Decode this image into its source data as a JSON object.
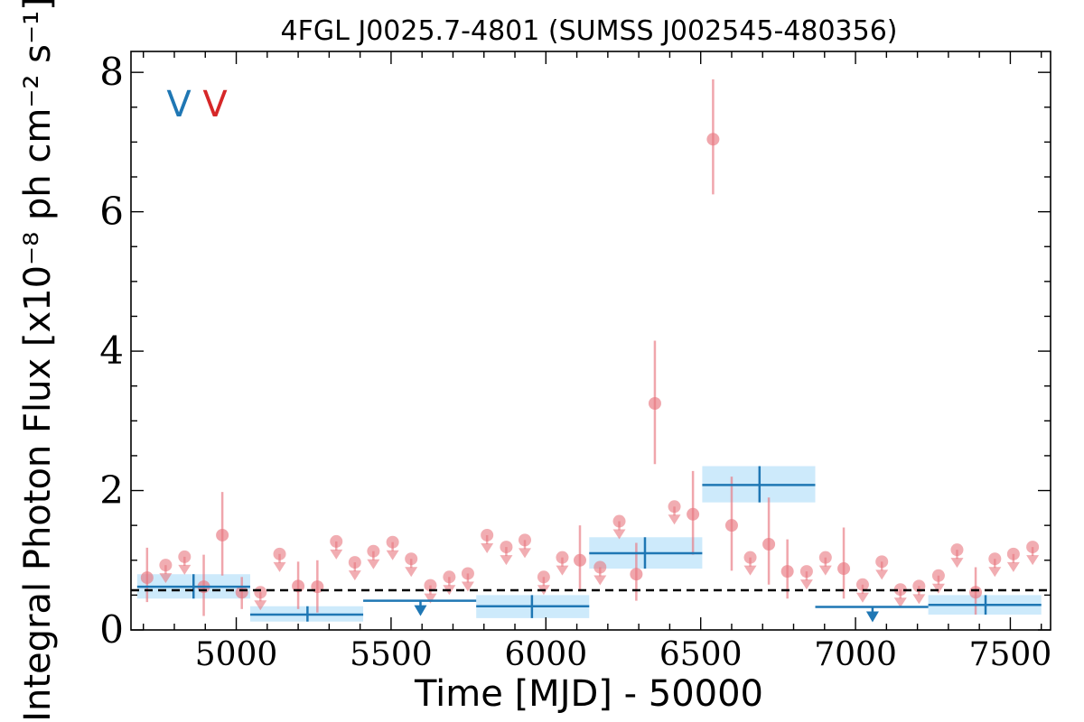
{
  "chart_data": {
    "type": "scatter",
    "title": "4FGL J0025.7-4801 (SUMSS J002545-480356)",
    "xlabel": "Time [MJD] - 50000",
    "ylabel": "Integral Photon Flux [x10⁻⁸ ph cm⁻² s⁻¹]",
    "xlim": [
      4660,
      7630
    ],
    "ylim": [
      0,
      8.3
    ],
    "x_ticks": [
      5000,
      5500,
      6000,
      6500,
      7000,
      7500
    ],
    "x_tick_labels": [
      "5000",
      "5500",
      "6000",
      "6500",
      "7000",
      "7500"
    ],
    "y_ticks": [
      0,
      2,
      4,
      6,
      8
    ],
    "y_tick_labels": [
      "0",
      "2",
      "4",
      "6",
      "8"
    ],
    "legend_markers": [
      {
        "glyph": "V",
        "color": "#1f77b4"
      },
      {
        "glyph": "V",
        "color": "#d62728"
      }
    ],
    "mean_line": {
      "y": 0.57,
      "style": "dashed",
      "color": "#000000"
    },
    "colors": {
      "long_bin": "#1f77b4",
      "long_band": "#cdeafb",
      "short_bin": "#e8777f"
    },
    "series": [
      {
        "bin": "long",
        "detections": [
          {
            "x_start": 4680,
            "x_end": 5045,
            "x": 4862,
            "y": 0.62,
            "y_lo": 0.45,
            "y_hi": 0.8
          },
          {
            "x_start": 5045,
            "x_end": 5410,
            "x": 5230,
            "y": 0.22,
            "y_lo": 0.12,
            "y_hi": 0.34
          },
          {
            "x_start": 5775,
            "x_end": 6140,
            "x": 5955,
            "y": 0.34,
            "y_lo": 0.17,
            "y_hi": 0.5
          },
          {
            "x_start": 6140,
            "x_end": 6505,
            "x": 6320,
            "y": 1.1,
            "y_lo": 0.88,
            "y_hi": 1.33
          },
          {
            "x_start": 6505,
            "x_end": 6870,
            "x": 6690,
            "y": 2.08,
            "y_lo": 1.83,
            "y_hi": 2.35
          },
          {
            "x_start": 7235,
            "x_end": 7600,
            "x": 7420,
            "y": 0.36,
            "y_lo": 0.22,
            "y_hi": 0.5
          }
        ],
        "upper_limits": [
          {
            "x_start": 5410,
            "x_end": 5775,
            "x": 5595,
            "y": 0.42
          },
          {
            "x_start": 6870,
            "x_end": 7235,
            "x": 7055,
            "y": 0.33
          }
        ]
      },
      {
        "bin": "short",
        "detections": [
          {
            "x": 4712,
            "y": 0.75,
            "y_lo": 0.4,
            "y_hi": 1.18
          },
          {
            "x": 4895,
            "y": 0.62,
            "y_lo": 0.2,
            "y_hi": 1.08
          },
          {
            "x": 4955,
            "y": 1.36,
            "y_lo": 0.78,
            "y_hi": 1.98
          },
          {
            "x": 5018,
            "y": 0.54,
            "y_lo": 0.3,
            "y_hi": 0.76
          },
          {
            "x": 5200,
            "y": 0.63,
            "y_lo": 0.3,
            "y_hi": 0.98
          },
          {
            "x": 5262,
            "y": 0.62,
            "y_lo": 0.25,
            "y_hi": 1.0
          },
          {
            "x": 6110,
            "y": 1.0,
            "y_lo": 0.55,
            "y_hi": 1.5
          },
          {
            "x": 6292,
            "y": 0.8,
            "y_lo": 0.42,
            "y_hi": 1.25
          },
          {
            "x": 6352,
            "y": 3.25,
            "y_lo": 2.38,
            "y_hi": 4.15
          },
          {
            "x": 6475,
            "y": 1.66,
            "y_lo": 1.08,
            "y_hi": 2.28
          },
          {
            "x": 6540,
            "y": 7.04,
            "y_lo": 6.25,
            "y_hi": 7.9
          },
          {
            "x": 6600,
            "y": 1.5,
            "y_lo": 0.85,
            "y_hi": 2.2
          },
          {
            "x": 6720,
            "y": 1.23,
            "y_lo": 0.65,
            "y_hi": 1.9
          },
          {
            "x": 6780,
            "y": 0.84,
            "y_lo": 0.45,
            "y_hi": 1.3
          },
          {
            "x": 6962,
            "y": 0.88,
            "y_lo": 0.45,
            "y_hi": 1.47
          },
          {
            "x": 7388,
            "y": 0.54,
            "y_lo": 0.22,
            "y_hi": 0.9
          }
        ],
        "upper_limits": [
          {
            "x": 4772,
            "y": 0.93
          },
          {
            "x": 4833,
            "y": 1.05
          },
          {
            "x": 5078,
            "y": 0.54
          },
          {
            "x": 5140,
            "y": 1.09
          },
          {
            "x": 5323,
            "y": 1.27
          },
          {
            "x": 5383,
            "y": 0.97
          },
          {
            "x": 5443,
            "y": 1.13
          },
          {
            "x": 5505,
            "y": 1.26
          },
          {
            "x": 5565,
            "y": 1.02
          },
          {
            "x": 5627,
            "y": 0.64
          },
          {
            "x": 5688,
            "y": 0.76
          },
          {
            "x": 5748,
            "y": 0.81
          },
          {
            "x": 5810,
            "y": 1.36
          },
          {
            "x": 5872,
            "y": 1.19
          },
          {
            "x": 5932,
            "y": 1.29
          },
          {
            "x": 5993,
            "y": 0.76
          },
          {
            "x": 6053,
            "y": 1.04
          },
          {
            "x": 6175,
            "y": 0.9
          },
          {
            "x": 6237,
            "y": 1.56
          },
          {
            "x": 6415,
            "y": 1.77
          },
          {
            "x": 6660,
            "y": 1.04
          },
          {
            "x": 6842,
            "y": 0.84
          },
          {
            "x": 6903,
            "y": 1.04
          },
          {
            "x": 7023,
            "y": 0.65
          },
          {
            "x": 7085,
            "y": 0.98
          },
          {
            "x": 7145,
            "y": 0.58
          },
          {
            "x": 7205,
            "y": 0.63
          },
          {
            "x": 7268,
            "y": 0.78
          },
          {
            "x": 7328,
            "y": 1.15
          },
          {
            "x": 7450,
            "y": 1.02
          },
          {
            "x": 7510,
            "y": 1.09
          },
          {
            "x": 7572,
            "y": 1.19
          }
        ]
      }
    ]
  }
}
